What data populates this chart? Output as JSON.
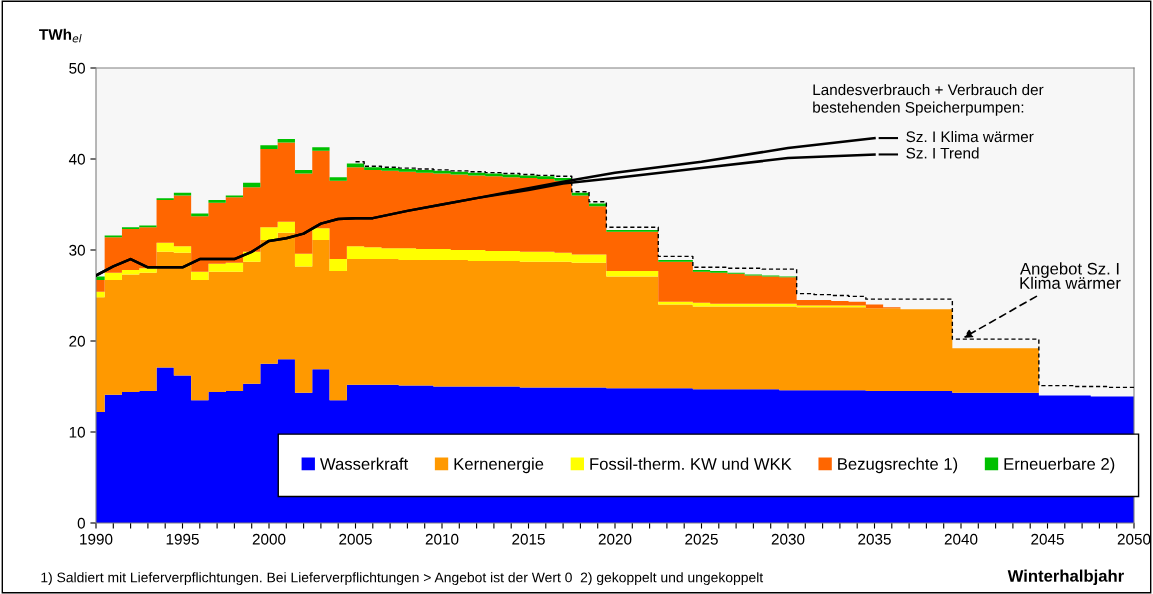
{
  "chart_data": {
    "type": "area",
    "stacked": true,
    "ylabel": "TWh$_{el}$",
    "xlabel": "Winterhalbjahr",
    "x": [
      1990,
      1991,
      1992,
      1993,
      1994,
      1995,
      1996,
      1997,
      1998,
      1999,
      2000,
      2001,
      2002,
      2003,
      2004,
      2005,
      2006,
      2007,
      2008,
      2009,
      2010,
      2011,
      2012,
      2013,
      2014,
      2015,
      2016,
      2017,
      2018,
      2019,
      2020,
      2021,
      2022,
      2023,
      2024,
      2025,
      2026,
      2027,
      2028,
      2029,
      2030,
      2031,
      2032,
      2033,
      2034,
      2035,
      2036,
      2037,
      2038,
      2039,
      2040,
      2041,
      2042,
      2043,
      2044,
      2045,
      2046,
      2047,
      2048,
      2049,
      2050
    ],
    "xlim": [
      1990,
      2050
    ],
    "ylim": [
      0,
      50
    ],
    "yticks": [
      0,
      10,
      20,
      30,
      40,
      50
    ],
    "xticks": [
      1990,
      {
        "value": 1991,
        "label": null
      },
      {
        "value": 1992,
        "label": null
      },
      {
        "value": 1993,
        "label": null
      },
      {
        "value": 1994,
        "label": null
      },
      1995,
      {
        "value": 1996,
        "label": null
      },
      {
        "value": 1997,
        "label": null
      },
      {
        "value": 1998,
        "label": null
      },
      {
        "value": 1999,
        "label": null
      },
      2000,
      {
        "value": 2001,
        "label": null
      },
      {
        "value": 2002,
        "label": null
      },
      {
        "value": 2003,
        "label": null
      },
      {
        "value": 2004,
        "label": null
      },
      2005,
      {
        "value": 2006,
        "label": null
      },
      {
        "value": 2007,
        "label": null
      },
      {
        "value": 2008,
        "label": null
      },
      {
        "value": 2009,
        "label": null
      },
      2010,
      {
        "value": 2011,
        "label": null
      },
      {
        "value": 2012,
        "label": null
      },
      {
        "value": 2013,
        "label": null
      },
      {
        "value": 2014,
        "label": null
      },
      2015,
      {
        "value": 2016,
        "label": null
      },
      {
        "value": 2017,
        "label": null
      },
      {
        "value": 2018,
        "label": null
      },
      {
        "value": 2019,
        "label": null
      },
      2020,
      {
        "value": 2021,
        "label": null
      },
      {
        "value": 2022,
        "label": null
      },
      {
        "value": 2023,
        "label": null
      },
      {
        "value": 2024,
        "label": null
      },
      2025,
      {
        "value": 2026,
        "label": null
      },
      {
        "value": 2027,
        "label": null
      },
      {
        "value": 2028,
        "label": null
      },
      {
        "value": 2029,
        "label": null
      },
      2030,
      {
        "value": 2031,
        "label": null
      },
      {
        "value": 2032,
        "label": null
      },
      {
        "value": 2033,
        "label": null
      },
      {
        "value": 2034,
        "label": null
      },
      2035,
      {
        "value": 2036,
        "label": null
      },
      {
        "value": 2037,
        "label": null
      },
      {
        "value": 2038,
        "label": null
      },
      {
        "value": 2039,
        "label": null
      },
      2040,
      {
        "value": 2041,
        "label": null
      },
      {
        "value": 2042,
        "label": null
      },
      {
        "value": 2043,
        "label": null
      },
      {
        "value": 2044,
        "label": null
      },
      2045,
      {
        "value": 2046,
        "label": null
      },
      {
        "value": 2047,
        "label": null
      },
      {
        "value": 2048,
        "label": null
      },
      {
        "value": 2049,
        "label": null
      },
      2050
    ],
    "series": [
      {
        "name": "Wasserkraft",
        "color": "#0000ff",
        "values": [
          12.2,
          14.1,
          14.4,
          14.5,
          17.1,
          16.2,
          13.5,
          14.4,
          14.5,
          15.3,
          17.5,
          18.0,
          14.3,
          16.9,
          13.5,
          15.2,
          15.2,
          15.2,
          15.1,
          15.1,
          15.0,
          15.0,
          15.0,
          15.0,
          15.0,
          14.9,
          14.9,
          14.9,
          14.9,
          14.9,
          14.8,
          14.8,
          14.8,
          14.8,
          14.8,
          14.7,
          14.7,
          14.7,
          14.7,
          14.7,
          14.6,
          14.6,
          14.6,
          14.6,
          14.6,
          14.5,
          14.5,
          14.5,
          14.5,
          14.5,
          14.3,
          14.3,
          14.3,
          14.3,
          14.3,
          14.0,
          14.0,
          14.0,
          13.9,
          13.9,
          13.9
        ]
      },
      {
        "name": "Kernenergie",
        "color": "#ff9900",
        "values": [
          12.6,
          12.6,
          12.9,
          13.0,
          12.7,
          13.5,
          13.2,
          13.2,
          13.1,
          13.4,
          13.6,
          13.9,
          13.9,
          14.2,
          14.2,
          13.8,
          13.8,
          13.8,
          13.8,
          13.8,
          13.9,
          13.9,
          13.8,
          13.8,
          13.8,
          13.8,
          13.8,
          13.8,
          13.7,
          13.7,
          12.3,
          12.3,
          12.3,
          9.2,
          9.2,
          9.1,
          9.1,
          9.1,
          9.1,
          9.1,
          9.2,
          9.1,
          9.1,
          9.1,
          9.1,
          9.1,
          9.1,
          9.0,
          9.0,
          9.0,
          4.9,
          4.9,
          4.9,
          4.9,
          4.9,
          0,
          0,
          0,
          0,
          0,
          0
        ]
      },
      {
        "name": "Fossil-therm. KW und WKK",
        "color": "#ffff00",
        "values": [
          0.6,
          0.8,
          0.5,
          0.5,
          1.0,
          0.7,
          0.9,
          0.9,
          1.0,
          1.1,
          1.4,
          1.2,
          1.4,
          1.3,
          1.3,
          1.4,
          1.3,
          1.2,
          1.3,
          1.2,
          1.2,
          1.1,
          1.2,
          1.1,
          1.1,
          1.1,
          1.1,
          1.0,
          0.9,
          0.9,
          0.6,
          0.6,
          0.6,
          0.3,
          0.3,
          0.4,
          0.3,
          0.3,
          0.3,
          0.3,
          0.3,
          0.2,
          0.2,
          0.2,
          0.2,
          0,
          0,
          0,
          0,
          0,
          0,
          0,
          0,
          0,
          0,
          0,
          0,
          0,
          0,
          0,
          0
        ]
      },
      {
        "name": "Bezugsrechte 1)",
        "color": "#ff6600",
        "values": [
          1.3,
          3.9,
          4.5,
          4.5,
          4.7,
          5.6,
          6.1,
          6.7,
          7.2,
          7.1,
          8.6,
          8.7,
          8.8,
          8.5,
          8.6,
          8.7,
          8.5,
          8.5,
          8.4,
          8.4,
          8.3,
          8.3,
          8.2,
          8.2,
          8.1,
          8.1,
          8.0,
          7.9,
          6.5,
          5.3,
          4.3,
          4.3,
          4.3,
          4.4,
          4.4,
          3.4,
          3.4,
          3.3,
          3.1,
          3.0,
          2.9,
          0.6,
          0.6,
          0.5,
          0.4,
          0.4,
          0.1,
          0,
          0,
          0,
          0,
          0,
          0,
          0,
          0,
          0,
          0,
          0,
          0,
          0,
          0
        ]
      },
      {
        "name": "Erneuerbare 2)",
        "color": "#00c000",
        "values": [
          0.4,
          0.2,
          0.2,
          0.2,
          0.2,
          0.3,
          0.3,
          0.3,
          0.2,
          0.5,
          0.4,
          0.4,
          0.4,
          0.4,
          0.4,
          0.4,
          0.3,
          0.3,
          0.3,
          0.3,
          0.3,
          0.3,
          0.3,
          0.3,
          0.3,
          0.3,
          0.3,
          0.3,
          0.3,
          0.3,
          0.2,
          0.2,
          0.2,
          0.2,
          0.2,
          0.2,
          0.2,
          0.1,
          0.1,
          0.1,
          0.1,
          0,
          0,
          0,
          0,
          0,
          0,
          0,
          0,
          0,
          0,
          0,
          0,
          0,
          0,
          0,
          0,
          0,
          0,
          0,
          0
        ]
      },
      {
        "type": "step",
        "line_style": "dashed",
        "color": "#000000",
        "x": [
          2005,
          2006,
          2007,
          2008,
          2009,
          2010,
          2011,
          2012,
          2013,
          2014,
          2015,
          2016,
          2017,
          2018,
          2019,
          2020,
          2021,
          2022,
          2023,
          2024,
          2025,
          2026,
          2027,
          2028,
          2029,
          2030,
          2031,
          2032,
          2033,
          2034,
          2035,
          2036,
          2037,
          2038,
          2039,
          2040,
          2041,
          2042,
          2043,
          2044,
          2045,
          2046,
          2047,
          2048,
          2049,
          2050
        ],
        "values": [
          39.7,
          39.2,
          39.1,
          39.0,
          38.9,
          38.8,
          38.7,
          38.6,
          38.5,
          38.4,
          38.3,
          38.2,
          38.1,
          36.4,
          35.3,
          32.5,
          32.5,
          32.5,
          29.3,
          29.3,
          28.1,
          28.1,
          28.0,
          28.0,
          27.9,
          27.9,
          25.2,
          25.1,
          25.0,
          24.9,
          24.6,
          24.6,
          24.6,
          24.6,
          24.6,
          20.2,
          20.2,
          20.2,
          20.2,
          20.2,
          15.1,
          15.1,
          15.0,
          15.0,
          14.9,
          14.9
        ]
      },
      {
        "type": "line",
        "name": "Sz. I Klima wärmer",
        "color": "#000000",
        "x": [
          1990,
          1991,
          1992,
          1993,
          1994,
          1995,
          1996,
          1997,
          1998,
          1999,
          2000,
          2001,
          2002,
          2003,
          2004,
          2005,
          2006,
          2008,
          2010,
          2012,
          2015,
          2017,
          2020,
          2025,
          2030,
          2035
        ],
        "values": [
          27.2,
          28.2,
          29.0,
          28.1,
          28.1,
          28.1,
          29.0,
          29.0,
          29.0,
          29.8,
          31.0,
          31.3,
          31.8,
          32.9,
          33.4,
          33.5,
          33.5,
          34.3,
          35.0,
          35.7,
          36.8,
          37.5,
          38.5,
          39.7,
          41.2,
          42.3
        ]
      },
      {
        "type": "line",
        "name": "Sz. I Trend",
        "color": "#000000",
        "x": [
          1990,
          1991,
          1992,
          1993,
          1994,
          1995,
          1996,
          1997,
          1998,
          1999,
          2000,
          2001,
          2002,
          2003,
          2004,
          2005,
          2006,
          2008,
          2010,
          2012,
          2015,
          2017,
          2020,
          2025,
          2030,
          2035
        ],
        "values": [
          27.2,
          28.2,
          29.0,
          28.1,
          28.1,
          28.1,
          29.0,
          29.0,
          29.0,
          29.8,
          31.0,
          31.3,
          31.8,
          32.9,
          33.4,
          33.5,
          33.5,
          34.3,
          35.0,
          35.7,
          36.6,
          37.3,
          37.9,
          39.0,
          40.1,
          40.5
        ]
      }
    ],
    "annotations": [
      "Landesverbrauch + Verbrauch der\nbestehenden Speicherpumpen:",
      {
        "text": "Angebot Sz. I\nKlima wärmer",
        "x": 2040,
        "y": 20.2
      },
      "1) Saldiert mit Lieferverpflichtungen. Bei Lieferverpflichtungen > Angebot ist der Wert 0  2) gekoppelt und ungekoppelt"
    ],
    "legend": "bottom",
    "grid": false
  }
}
